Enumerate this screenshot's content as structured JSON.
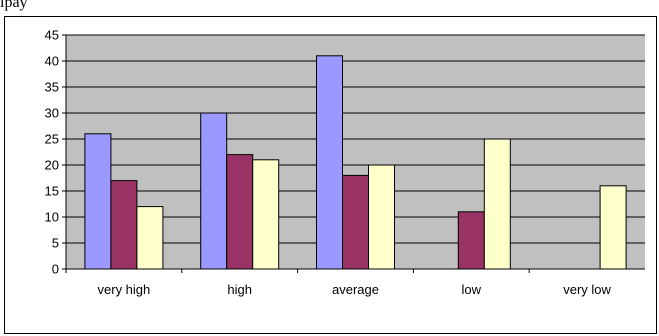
{
  "top_text": "ipay",
  "chart_data": {
    "type": "bar",
    "categories": [
      "very high",
      "high",
      "average",
      "low",
      "very low"
    ],
    "series": [
      {
        "values": [
          26,
          30,
          41,
          null,
          null
        ],
        "color": "#9999ff"
      },
      {
        "values": [
          17,
          22,
          18,
          11,
          null
        ],
        "color": "#993366"
      },
      {
        "values": [
          12,
          21,
          20,
          25,
          16
        ],
        "color": "#ffffcc"
      }
    ],
    "ylim": [
      0,
      45
    ],
    "yticks": [
      0,
      5,
      10,
      15,
      20,
      25,
      30,
      35,
      40,
      45
    ],
    "grid": true,
    "plot_background": "#c0c0c0",
    "legend": "none"
  }
}
